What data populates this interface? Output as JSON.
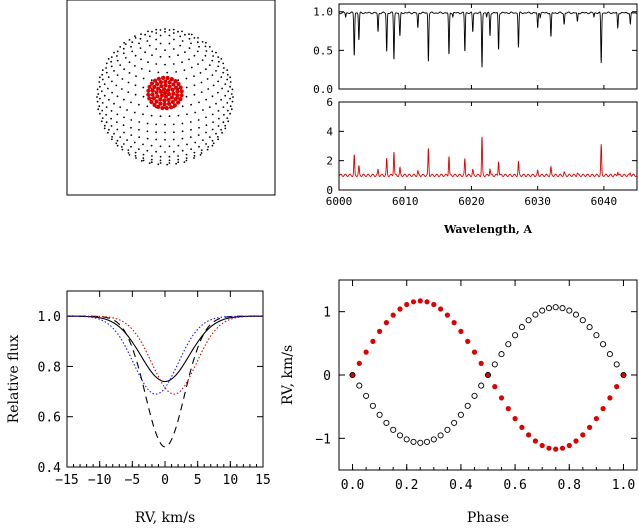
{
  "chart_data": [
    {
      "id": "star-disk",
      "type": "scatter",
      "description_colors": {
        "surface": "#000000",
        "spot": "#e00000"
      },
      "surface_points": "dotted spherical surface grid",
      "spot_points": "red spot near disk center"
    },
    {
      "id": "spectrum-top",
      "type": "line",
      "xlim": [
        6000,
        6045
      ],
      "ylim": [
        0,
        1.1
      ],
      "yticks": [
        0.0,
        0.5,
        1.0
      ],
      "ytick_labels": [
        "0.0",
        "0.5",
        "1.0"
      ],
      "color": "#000000",
      "absorption_lines": [
        {
          "x": 6002.3,
          "depth": 0.55
        },
        {
          "x": 6003.0,
          "depth": 0.35
        },
        {
          "x": 6005.9,
          "depth": 0.25
        },
        {
          "x": 6007.2,
          "depth": 0.5
        },
        {
          "x": 6008.3,
          "depth": 0.6
        },
        {
          "x": 6009.2,
          "depth": 0.3
        },
        {
          "x": 6011.9,
          "depth": 0.2
        },
        {
          "x": 6013.5,
          "depth": 0.62
        },
        {
          "x": 6016.6,
          "depth": 0.55
        },
        {
          "x": 6019.0,
          "depth": 0.5
        },
        {
          "x": 6020.2,
          "depth": 0.25
        },
        {
          "x": 6021.6,
          "depth": 0.7
        },
        {
          "x": 6022.8,
          "depth": 0.3
        },
        {
          "x": 6024.1,
          "depth": 0.48
        },
        {
          "x": 6027.1,
          "depth": 0.45
        },
        {
          "x": 6030.0,
          "depth": 0.2
        },
        {
          "x": 6032.0,
          "depth": 0.32
        },
        {
          "x": 6034.0,
          "depth": 0.15
        },
        {
          "x": 6036.0,
          "depth": 0.12
        },
        {
          "x": 6039.6,
          "depth": 0.65
        },
        {
          "x": 6042.1,
          "depth": 0.2
        },
        {
          "x": 6044.0,
          "depth": 0.15
        }
      ]
    },
    {
      "id": "spectrum-bottom",
      "type": "line",
      "xlim": [
        6000,
        6045
      ],
      "ylim": [
        0,
        6
      ],
      "yticks": [
        0,
        2,
        4,
        6
      ],
      "ytick_labels": [
        "0",
        "2",
        "4",
        "6"
      ],
      "xticks": [
        6000,
        6010,
        6020,
        6030,
        6040
      ],
      "xtick_labels": [
        "6000",
        "6010",
        "6020",
        "6030",
        "6040"
      ],
      "xlabel": "Wavelength, A",
      "color": "#e00000",
      "continuum": 1.0
    },
    {
      "id": "line-profiles",
      "type": "line",
      "xlim": [
        -15,
        15
      ],
      "ylim": [
        0.4,
        1.1
      ],
      "xticks": [
        -15,
        -10,
        -5,
        0,
        5,
        10,
        15
      ],
      "xtick_labels": [
        "−15",
        "−10",
        "−5",
        "0",
        "5",
        "10",
        "15"
      ],
      "yticks": [
        0.4,
        0.6,
        0.8,
        1.0
      ],
      "ytick_labels": [
        "0.4",
        "0.6",
        "0.8",
        "1.0"
      ],
      "xlabel": "RV, km/s",
      "ylabel": "Relative flux",
      "series": [
        {
          "style": "dashed",
          "color": "#000000",
          "center": 0.0,
          "depth": 0.52,
          "width": 4.2
        },
        {
          "style": "solid",
          "color": "#000000",
          "center": 0.0,
          "depth": 0.26,
          "width": 5.2
        },
        {
          "style": "dotted",
          "color": "#e00000",
          "center": 1.4,
          "depth": 0.31,
          "width": 4.8
        },
        {
          "style": "dotted",
          "color": "#1a1aff",
          "center": -1.4,
          "depth": 0.31,
          "width": 4.8
        }
      ]
    },
    {
      "id": "rv-curve",
      "type": "scatter",
      "xlim": [
        -0.05,
        1.05
      ],
      "ylim": [
        -1.5,
        1.5
      ],
      "xticks": [
        0.0,
        0.2,
        0.4,
        0.6,
        0.8,
        1.0
      ],
      "xtick_labels": [
        "0.0",
        "0.2",
        "0.4",
        "0.6",
        "0.8",
        "1.0"
      ],
      "yticks": [
        -1,
        0,
        1
      ],
      "ytick_labels": [
        "−1",
        "0",
        "1"
      ],
      "xlabel": "Phase",
      "ylabel": "RV, km/s",
      "series": [
        {
          "name": "",
          "marker": "filled",
          "color": "#e00000",
          "amplitude": 1.17,
          "phase_step": 0.025
        },
        {
          "name": "",
          "marker": "open",
          "color": "#000000",
          "amplitude": -1.07,
          "phase_step": 0.025
        }
      ]
    }
  ]
}
